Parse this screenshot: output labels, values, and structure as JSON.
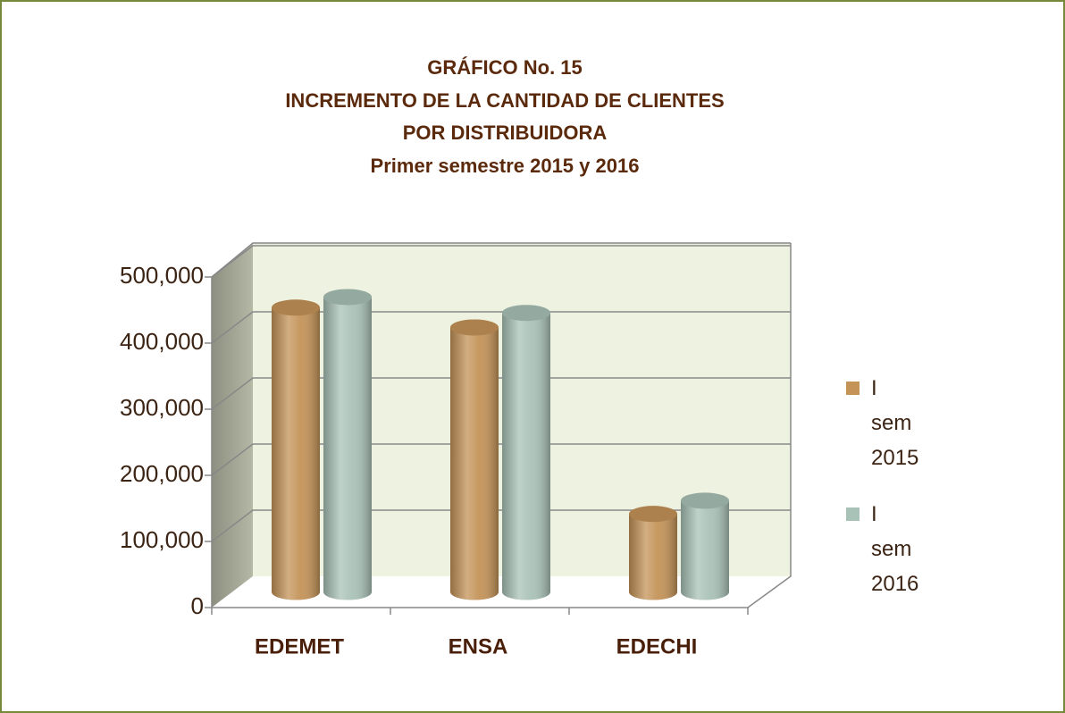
{
  "chart_data": {
    "type": "bar3d",
    "title": [
      "GRÁFICO No. 15",
      "INCREMENTO DE LA CANTIDAD DE CLIENTES",
      "POR  DISTRIBUIDORA",
      "Primer semestre  2015  y  2016"
    ],
    "categories": [
      "EDEMET",
      "ENSA",
      "EDECHI"
    ],
    "series": [
      {
        "name": "I sem 2015",
        "color": "#c49358",
        "values": [
          430000,
          400000,
          118000
        ]
      },
      {
        "name": "I sem 2016",
        "color": "#a9c2b7",
        "values": [
          446000,
          422000,
          138000
        ]
      }
    ],
    "ylim": [
      0,
      500000
    ],
    "yticks": [
      0,
      {
        "value": 100000,
        "label": "100,000"
      },
      {
        "value": 200000,
        "label": "200,000"
      },
      {
        "value": 300000,
        "label": "300,000"
      },
      {
        "value": 400000,
        "label": "400,000"
      },
      {
        "value": 500000,
        "label": "500,000"
      }
    ],
    "grid": true,
    "legend": "right"
  }
}
